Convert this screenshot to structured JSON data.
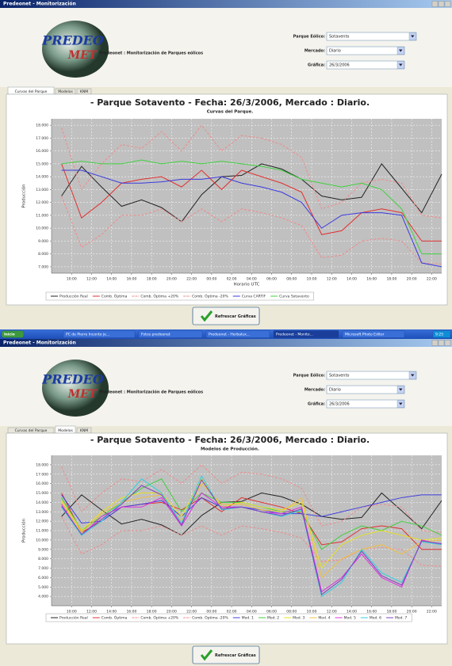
{
  "windows": [
    {
      "title": "Predeonet - Monitorización",
      "logo": [
        "PREDEO",
        "MET"
      ],
      "header": "Predeonet : Monitorización de Parques eólicos",
      "fields": [
        {
          "label": "Parque Eólico:",
          "value": "Sotavento"
        },
        {
          "label": "Mercado:",
          "value": "Diario"
        },
        {
          "label": "Gráfica:",
          "value": "26/3/2006"
        }
      ],
      "tabs": [
        "Curvas del Parque",
        "Modelos",
        "KNM"
      ],
      "button": "Refrescar Gráficas"
    },
    {
      "title": "Predeonet - Monitorización",
      "logo": [
        "PREDEO",
        "MET"
      ],
      "header": "Predeonet : Monitorización de Parques eólicos",
      "fields": [
        {
          "label": "Parque Eólico:",
          "value": "Sotavento"
        },
        {
          "label": "Mercado:",
          "value": "Diario"
        },
        {
          "label": "Gráfica:",
          "value": "26/3/2006"
        }
      ],
      "tabs": [
        "Curvas del Parque",
        "Modelos",
        "KNM"
      ],
      "button": "Refrescar Gráficas"
    }
  ],
  "taskbar": [
    "Inicio",
    "PC de Pierre Inconto je...",
    "Fotos predeonet",
    "Predeonet - Herbalux...",
    "Predeonet - Monito...",
    "Microsoft Photo Editor",
    "9:25"
  ],
  "chart_data": [
    {
      "type": "line",
      "title": "- Parque Sotavento - Fecha: 26/3/2006, Mercado : Diario.",
      "subtitle": "Curvas del Parque.",
      "x_label": "Horario UTC",
      "y_label": "Producción",
      "grid": true,
      "x": [
        9,
        11,
        13,
        15,
        17,
        19,
        21,
        23,
        25,
        27,
        29,
        31,
        33,
        35,
        37,
        39,
        41,
        43,
        45,
        47
      ],
      "xlim": [
        8,
        47
      ],
      "xticks": [
        {
          "value": 10,
          "label": "10:00"
        },
        {
          "value": 12,
          "label": "12:00"
        },
        {
          "value": 14,
          "label": "14:00"
        },
        {
          "value": 16,
          "label": "16:00"
        },
        {
          "value": 18,
          "label": "18:00"
        },
        {
          "value": 20,
          "label": "20:00"
        },
        {
          "value": 22,
          "label": "22:00"
        },
        {
          "value": 24,
          "label": "00:00"
        },
        {
          "value": 26,
          "label": "02:00"
        },
        {
          "value": 28,
          "label": "04:00"
        },
        {
          "value": 30,
          "label": "06:00"
        },
        {
          "value": 32,
          "label": "08:00"
        },
        {
          "value": 34,
          "label": "10:00"
        },
        {
          "value": 36,
          "label": "12:00"
        },
        {
          "value": 38,
          "label": "14:00"
        },
        {
          "value": 40,
          "label": "16:00"
        },
        {
          "value": 42,
          "label": "18:00"
        },
        {
          "value": 44,
          "label": "20:00"
        },
        {
          "value": 46,
          "label": "22:00"
        }
      ],
      "ylim": [
        6500,
        18500
      ],
      "yticks": [
        {
          "value": 7000,
          "label": "7.000"
        },
        {
          "value": 8000,
          "label": "8.000"
        },
        {
          "value": 9000,
          "label": "9.000"
        },
        {
          "value": 10000,
          "label": "10.000"
        },
        {
          "value": 11000,
          "label": "11.000"
        },
        {
          "value": 12000,
          "label": "12.000"
        },
        {
          "value": 13000,
          "label": "13.000"
        },
        {
          "value": 14000,
          "label": "14.000"
        },
        {
          "value": 15000,
          "label": "15.000"
        },
        {
          "value": 16000,
          "label": "16.000"
        },
        {
          "value": 17000,
          "label": "17.000"
        },
        {
          "value": 18000,
          "label": "18.000"
        }
      ],
      "series": [
        {
          "name": "Producción Real",
          "color": "#222222",
          "values": [
            12500,
            14800,
            13200,
            11700,
            12200,
            11600,
            10500,
            12600,
            14000,
            14100,
            15000,
            14600,
            13800,
            12500,
            12200,
            12400,
            15000,
            13100,
            11200,
            14200
          ]
        },
        {
          "name": "Comb. Óptima",
          "color": "#e03030",
          "values": [
            15000,
            10800,
            12000,
            13500,
            13800,
            14000,
            13200,
            14500,
            13000,
            14500,
            14000,
            13500,
            12800,
            9500,
            9800,
            11200,
            11500,
            11200,
            9000,
            9000
          ]
        },
        {
          "name": "Comb. Óptima +20%",
          "color": "#f08a8a",
          "dash": true,
          "values": [
            17800,
            13000,
            15000,
            16500,
            16200,
            17500,
            16000,
            18000,
            16000,
            17200,
            17000,
            16500,
            15500,
            11500,
            12000,
            13500,
            13800,
            13500,
            11000,
            10800
          ]
        },
        {
          "name": "Comb. Óptima -20%",
          "color": "#f08a8a",
          "dash": true,
          "values": [
            12500,
            8500,
            9500,
            11000,
            11000,
            11500,
            10500,
            11500,
            10500,
            11500,
            11200,
            10800,
            10200,
            7700,
            7900,
            9000,
            9200,
            9000,
            7300,
            7200
          ]
        },
        {
          "name": "Curva CARTIF",
          "color": "#3a3ae0",
          "values": [
            14500,
            14500,
            14000,
            13500,
            13500,
            13600,
            13800,
            13800,
            14000,
            13500,
            13200,
            12800,
            12000,
            10000,
            11000,
            11200,
            11200,
            11000,
            7300,
            7000
          ]
        },
        {
          "name": "Curva Sotavento",
          "color": "#40d040",
          "values": [
            15000,
            15200,
            15000,
            15000,
            15300,
            15000,
            15200,
            15000,
            15200,
            15000,
            14800,
            14500,
            13800,
            13500,
            13200,
            13500,
            13000,
            11500,
            8000,
            8000
          ]
        }
      ]
    },
    {
      "type": "line",
      "title": "- Parque Sotavento - Fecha: 26/3/2006, Mercado : Diario.",
      "subtitle": "Modelos de Producción.",
      "x_label": "Horario UTC",
      "y_label": "Producción",
      "grid": true,
      "x": [
        9,
        11,
        13,
        15,
        17,
        19,
        21,
        23,
        25,
        27,
        29,
        31,
        33,
        35,
        37,
        39,
        41,
        43,
        45,
        47
      ],
      "xlim": [
        8,
        47
      ],
      "xticks": [
        {
          "value": 10,
          "label": "10:00"
        },
        {
          "value": 12,
          "label": "12:00"
        },
        {
          "value": 14,
          "label": "14:00"
        },
        {
          "value": 16,
          "label": "16:00"
        },
        {
          "value": 18,
          "label": "18:00"
        },
        {
          "value": 20,
          "label": "20:00"
        },
        {
          "value": 22,
          "label": "22:00"
        },
        {
          "value": 24,
          "label": "00:00"
        },
        {
          "value": 26,
          "label": "02:00"
        },
        {
          "value": 28,
          "label": "04:00"
        },
        {
          "value": 30,
          "label": "06:00"
        },
        {
          "value": 32,
          "label": "08:00"
        },
        {
          "value": 34,
          "label": "10:00"
        },
        {
          "value": 36,
          "label": "12:00"
        },
        {
          "value": 38,
          "label": "14:00"
        },
        {
          "value": 40,
          "label": "16:00"
        },
        {
          "value": 42,
          "label": "18:00"
        },
        {
          "value": 44,
          "label": "20:00"
        },
        {
          "value": 46,
          "label": "22:00"
        }
      ],
      "ylim": [
        3000,
        19000
      ],
      "yticks": [
        {
          "value": 4000,
          "label": "4.000"
        },
        {
          "value": 5000,
          "label": "5.000"
        },
        {
          "value": 6000,
          "label": "6.000"
        },
        {
          "value": 7000,
          "label": "7.000"
        },
        {
          "value": 8000,
          "label": "8.000"
        },
        {
          "value": 9000,
          "label": "9.000"
        },
        {
          "value": 10000,
          "label": "10.000"
        },
        {
          "value": 11000,
          "label": "11.000"
        },
        {
          "value": 12000,
          "label": "12.000"
        },
        {
          "value": 13000,
          "label": "13.000"
        },
        {
          "value": 14000,
          "label": "14.000"
        },
        {
          "value": 15000,
          "label": "15.000"
        },
        {
          "value": 16000,
          "label": "16.000"
        },
        {
          "value": 17000,
          "label": "17.000"
        },
        {
          "value": 18000,
          "label": "18.000"
        }
      ],
      "series": [
        {
          "name": "Producción Real",
          "color": "#222222",
          "values": [
            12500,
            14800,
            13200,
            11700,
            12200,
            11600,
            10500,
            12600,
            14000,
            14100,
            15000,
            14600,
            13800,
            12500,
            12200,
            12400,
            15000,
            13100,
            11200,
            14200
          ]
        },
        {
          "name": "Comb. Óptima",
          "color": "#e03030",
          "values": [
            15000,
            10800,
            12000,
            13500,
            13800,
            14000,
            13200,
            14500,
            13000,
            14500,
            14000,
            13500,
            12800,
            9500,
            9800,
            11200,
            11500,
            11200,
            9000,
            9000
          ]
        },
        {
          "name": "Comb. Óptima +20%",
          "color": "#f08a8a",
          "dash": true,
          "values": [
            17800,
            13000,
            15000,
            16500,
            16200,
            17500,
            16000,
            18000,
            16000,
            17200,
            17000,
            16500,
            15500,
            11500,
            12000,
            13500,
            13800,
            13500,
            11000,
            10800
          ]
        },
        {
          "name": "Comb. Óptima -20%",
          "color": "#f08a8a",
          "dash": true,
          "values": [
            12500,
            8500,
            9500,
            11000,
            11000,
            11500,
            10500,
            11500,
            10500,
            11500,
            11200,
            10800,
            10200,
            7700,
            7900,
            9000,
            9200,
            9000,
            7300,
            7200
          ]
        },
        {
          "name": "Mod. 1",
          "color": "#4040e0",
          "values": [
            14800,
            11800,
            12000,
            13500,
            13800,
            14200,
            12500,
            14500,
            13500,
            13500,
            13200,
            12800,
            12800,
            12500,
            13000,
            13500,
            14000,
            14500,
            14800,
            14800
          ]
        },
        {
          "name": "Mod. 2",
          "color": "#40d040",
          "values": [
            14500,
            11000,
            12500,
            14000,
            15500,
            16500,
            13000,
            15000,
            14000,
            14000,
            13500,
            13000,
            13000,
            9000,
            10500,
            11500,
            11000,
            12000,
            11500,
            10500
          ]
        },
        {
          "name": "Mod. 3",
          "color": "#e8e020",
          "values": [
            14200,
            11000,
            13000,
            14500,
            15000,
            15000,
            12500,
            16500,
            13500,
            14000,
            13500,
            13200,
            14000,
            7000,
            9500,
            10500,
            11000,
            10500,
            10000,
            10200
          ]
        },
        {
          "name": "Mod. 4",
          "color": "#f0c040",
          "values": [
            14000,
            10800,
            12800,
            14000,
            14500,
            14800,
            12000,
            16000,
            13800,
            13800,
            13200,
            13000,
            14500,
            6000,
            8000,
            9000,
            9500,
            8500,
            9800,
            10000
          ]
        },
        {
          "name": "Mod. 5",
          "color": "#e030e0",
          "values": [
            13800,
            10500,
            12500,
            13500,
            13500,
            14500,
            11500,
            15000,
            13500,
            13500,
            13000,
            12800,
            13500,
            4500,
            6000,
            8500,
            6000,
            5000,
            10000,
            9500
          ]
        },
        {
          "name": "Mod. 6",
          "color": "#30d0e0",
          "values": [
            13500,
            10500,
            12000,
            14000,
            16500,
            15000,
            11800,
            16800,
            13200,
            13500,
            13000,
            12500,
            13200,
            4000,
            5500,
            9000,
            6500,
            5500,
            9800,
            9500
          ]
        },
        {
          "name": "Mod. 7",
          "color": "#8040c0",
          "values": [
            13600,
            10600,
            12200,
            13800,
            15800,
            14800,
            11600,
            16400,
            13300,
            13500,
            13000,
            12600,
            13300,
            4200,
            5800,
            8800,
            6200,
            5200,
            9900,
            9600
          ]
        }
      ]
    }
  ]
}
